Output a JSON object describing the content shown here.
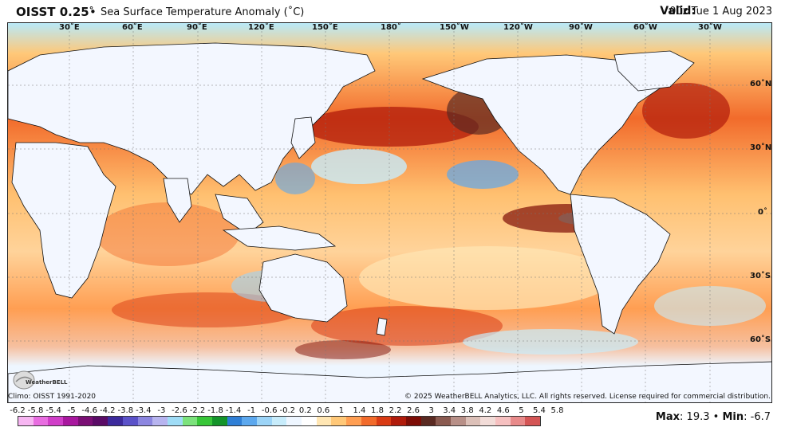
{
  "header": {
    "product": "OISST 0.25",
    "degree": "°",
    "bullet": "•",
    "description": "Sea Surface Temperature Anomaly (˚C)",
    "valid_label": "Valid:",
    "valid_value": "00z Tue 1 Aug 2023"
  },
  "map": {
    "longitude_labels": [
      "30˚E",
      "60˚E",
      "90˚E",
      "120˚E",
      "150˚E",
      "180˚",
      "150˚W",
      "120˚W",
      "90˚W",
      "60˚W",
      "30˚W"
    ],
    "latitude_labels": [
      "60˚N",
      "30˚N",
      "0˚",
      "30˚S",
      "60˚S"
    ]
  },
  "footer": {
    "climo": "Climo: OISST 1991-2020",
    "copyright": "© 2025 WeatherBELL Analytics, LLC. All rights reserved. License required for commercial distribution.",
    "logo_text": "WeatherBELL"
  },
  "colorbar": {
    "labels": [
      "-6.2",
      "-5.8",
      "-5.4",
      "-5",
      "-4.6",
      "-4.2",
      "-3.8",
      "-3.4",
      "-3",
      "-2.6",
      "-2.2",
      "-1.8",
      "-1.4",
      "-1",
      "-0.6",
      "-0.2",
      "0.2",
      "0.6",
      "1",
      "1.4",
      "1.8",
      "2.2",
      "2.6",
      "3",
      "3.4",
      "3.8",
      "4.2",
      "4.6",
      "5",
      "5.4",
      "5.8"
    ],
    "colors": [
      "#f7b6f2",
      "#e86de0",
      "#d03ec8",
      "#a8179e",
      "#7a0f74",
      "#5a0b66",
      "#3c2a9c",
      "#5b52c9",
      "#8c86e0",
      "#b7b4ef",
      "#9fdcf6",
      "#7ce27c",
      "#38c638",
      "#14942a",
      "#2f7fd6",
      "#5ca8ee",
      "#9cd4f7",
      "#c7ecfb",
      "#eef6ff",
      "#ffffff",
      "#ffe6b3",
      "#ffc878",
      "#ff9e52",
      "#f26b2b",
      "#d93b14",
      "#b01b0b",
      "#7d0d06",
      "#5a2a22",
      "#8a5a50",
      "#b89088",
      "#dcc0b8",
      "#f2dcd8",
      "#f6c0c0",
      "#e88a8a",
      "#d45555"
    ]
  },
  "stats": {
    "max_label": "Max",
    "max_value": ": 19.3",
    "bullet": "•",
    "min_label": "Min",
    "min_value": ": -6.7"
  }
}
